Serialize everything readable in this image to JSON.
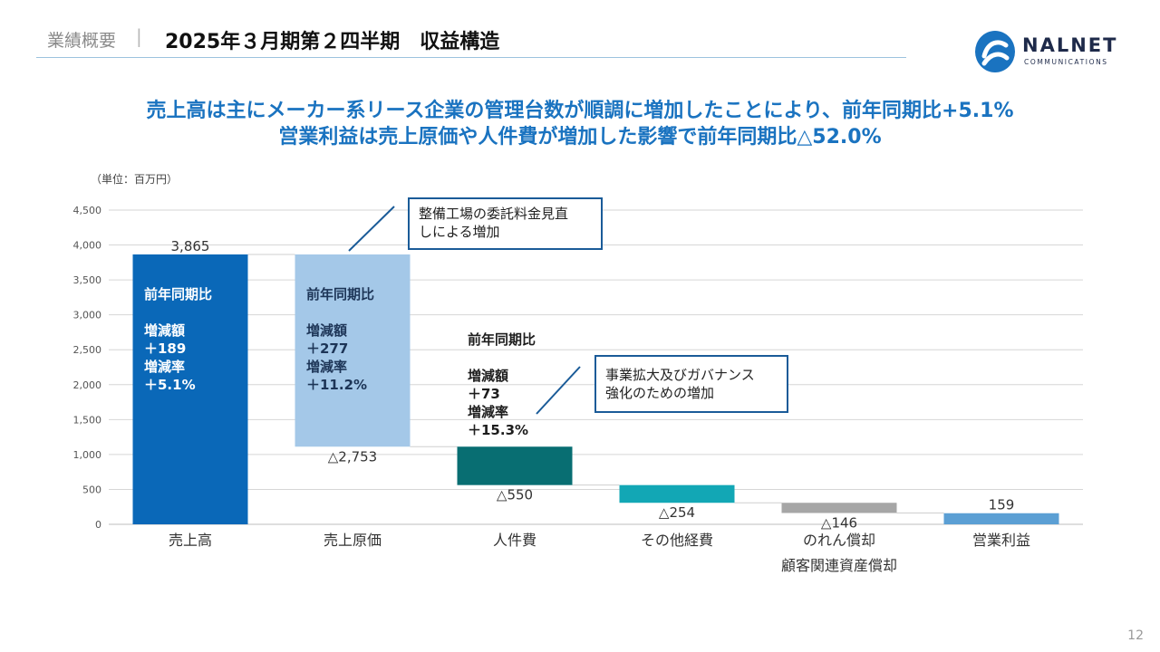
{
  "header": {
    "category": "業績概要",
    "separator": "|",
    "title": "2025年３月期第２四半期　収益構造"
  },
  "logo": {
    "word": "NALNET",
    "sub": "COMMUNICATIONS",
    "icon": "nalnet-logo-icon"
  },
  "headline": {
    "line1": "売上高は主にメーカー系リース企業の管理台数が順調に増加したことにより、前年同期比+5.1%",
    "line2": "営業利益は売上原価や人件費が増加した影響で前年同期比△52.0%"
  },
  "callouts": {
    "cost": [
      "整備工場の委託料金見直",
      "しによる増加"
    ],
    "personnel": [
      "事業拡大及びガバナンス",
      "強化のための増加"
    ]
  },
  "page_number": "12",
  "colors": {
    "accent": "#1a73c0",
    "sales": "#0a68b8",
    "cost": "#a4c8e8",
    "personnel": "#086e72",
    "other": "#12a7b5",
    "goodwill": "#a6a6a6",
    "profit": "#5b9fd4",
    "grid": "#d6d6d6"
  },
  "chart_data": {
    "type": "bar",
    "subtype": "waterfall",
    "unit_label": "（単位：百万円）",
    "ylim": [
      0,
      4500
    ],
    "yticks": [
      "0",
      "500",
      "1,000",
      "1,500",
      "2,000",
      "2,500",
      "3,000",
      "3,500",
      "4,000",
      "4,500"
    ],
    "categories": [
      [
        "売上高"
      ],
      [
        "売上原価"
      ],
      [
        "人件費"
      ],
      [
        "その他経費"
      ],
      [
        "のれん償却",
        "顧客関連資産償却"
      ],
      [
        "営業利益"
      ]
    ],
    "bars": [
      {
        "label": "売上高",
        "start": 0,
        "end": 3865,
        "value_label": "3,865",
        "color_key": "sales"
      },
      {
        "label": "売上原価",
        "start": 1112,
        "end": 3865,
        "value_label": "△2,753",
        "color_key": "cost"
      },
      {
        "label": "人件費",
        "start": 562,
        "end": 1112,
        "value_label": "△550",
        "color_key": "personnel"
      },
      {
        "label": "その他経費",
        "start": 308,
        "end": 562,
        "value_label": "△254",
        "color_key": "other"
      },
      {
        "label": "のれん償却",
        "start": 162,
        "end": 308,
        "value_label": "△146",
        "color_key": "goodwill"
      },
      {
        "label": "営業利益",
        "start": 0,
        "end": 159,
        "value_label": "159",
        "color_key": "profit"
      }
    ],
    "yoy_notes": [
      {
        "bar": 0,
        "lines": [
          "前年同期比",
          "",
          "増減額",
          "＋189",
          "増減率",
          "＋5.1%"
        ]
      },
      {
        "bar": 1,
        "lines": [
          "前年同期比",
          "",
          "増減額",
          "＋277",
          "増減率",
          "＋11.2%"
        ]
      },
      {
        "bar": 2,
        "lines": [
          "前年同期比",
          "",
          "増減額",
          "＋73",
          "増減率",
          "＋15.3%"
        ]
      }
    ]
  }
}
